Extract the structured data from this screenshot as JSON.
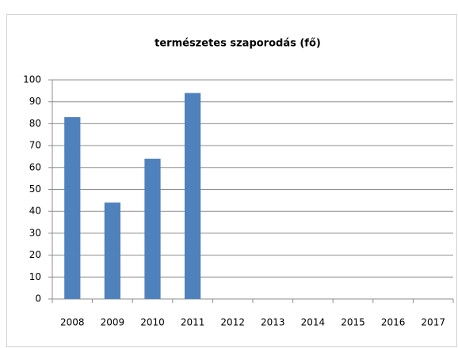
{
  "chart_data": {
    "type": "bar",
    "title": "természetes szaporodás (fő)",
    "categories": [
      "2008",
      "2009",
      "2010",
      "2011",
      "2012",
      "2013",
      "2014",
      "2015",
      "2016",
      "2017"
    ],
    "values": [
      83,
      44,
      64,
      94,
      null,
      null,
      null,
      null,
      null,
      null
    ],
    "color": "#4f81bd",
    "ylim": [
      0,
      100
    ],
    "yticks": [
      0,
      10,
      20,
      30,
      40,
      50,
      60,
      70,
      80,
      90,
      100
    ],
    "grid": true
  }
}
